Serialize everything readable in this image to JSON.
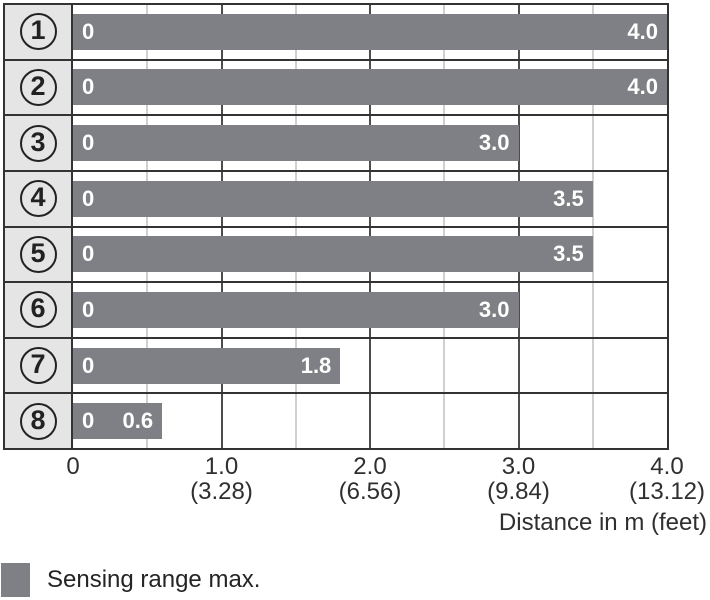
{
  "chart_data": {
    "type": "bar",
    "orientation": "horizontal",
    "categories": [
      "1",
      "2",
      "3",
      "4",
      "5",
      "6",
      "7",
      "8"
    ],
    "values": [
      4.0,
      4.0,
      3.0,
      3.5,
      3.5,
      3.0,
      1.8,
      0.6
    ],
    "value_labels": [
      "4.0",
      "4.0",
      "3.0",
      "3.5",
      "3.5",
      "3.0",
      "1.8",
      "0.6"
    ],
    "bar_start_label": "0",
    "xlabel": "Distance in m (feet)",
    "xlim": [
      0,
      4
    ],
    "x_ticks": [
      {
        "m": "0",
        "feet": ""
      },
      {
        "m": "1.0",
        "feet": "(3.28)"
      },
      {
        "m": "2.0",
        "feet": "(6.56)"
      },
      {
        "m": "3.0",
        "feet": "(9.84)"
      },
      {
        "m": "4.0",
        "feet": "(13.12)"
      }
    ],
    "minor_grid_step": 0.5,
    "major_grid_step": 1.0,
    "grid": true,
    "legend": {
      "label": "Sensing range max.",
      "position": "bottom-left"
    },
    "colors": {
      "bar": "#7f8085",
      "row_label_bg": "#e5e5e6",
      "border": "#333333",
      "major_grid": "#4d4d4d",
      "minor_grid": "#a2a2a2",
      "bar_value_text": "#ffffff",
      "axis_text": "#2f2f31"
    }
  }
}
